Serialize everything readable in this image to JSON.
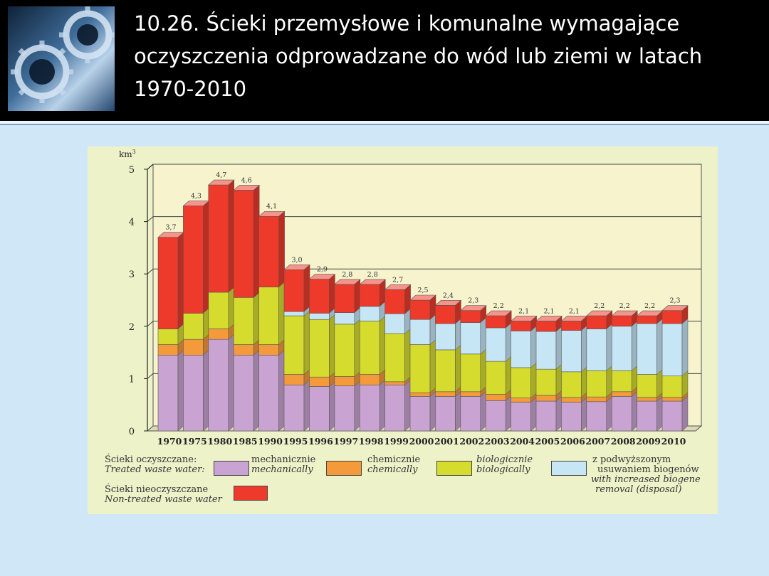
{
  "slide": {
    "title": "10.26. Ścieki przemysłowe i komunalne wymagające oczyszczenia odprowadzane do wód lub ziemi w latach 1970-2010",
    "logo_icon": "gears-icon"
  },
  "colors": {
    "background": "#cfe7f7",
    "header": "#000000",
    "chart_panel": "#eef2c9",
    "mechanically": "#c9a3d2",
    "chemically": "#f59a3a",
    "biologically": "#d6dc2e",
    "biogene_removal": "#c6e6f6",
    "non_treated": "#ee3a2a"
  },
  "chart_data": {
    "type": "bar",
    "stacked": true,
    "three_d": true,
    "unit_label": "km",
    "unit_superscript": "3",
    "ylim": [
      0,
      5
    ],
    "yticks": [
      0,
      1,
      2,
      3,
      4,
      5
    ],
    "grid": true,
    "categories": [
      "1970",
      "1975",
      "1980",
      "1985",
      "1990",
      "1995",
      "1996",
      "1997",
      "1998",
      "1999",
      "2000",
      "2001",
      "2002",
      "2003",
      "2004",
      "2005",
      "2006",
      "2007",
      "2008",
      "2009",
      "2010"
    ],
    "totals": [
      3.7,
      4.3,
      4.7,
      4.6,
      4.1,
      3.0,
      2.9,
      2.8,
      2.8,
      2.7,
      2.5,
      2.4,
      2.3,
      2.2,
      2.1,
      2.1,
      2.1,
      2.2,
      2.2,
      2.2,
      2.3
    ],
    "total_labels": [
      "3,7",
      "4,3",
      "4,7",
      "4,6",
      "4,1",
      "3,0",
      "2,9",
      "2,8",
      "2,8",
      "2,7",
      "2,5",
      "2,4",
      "2,3",
      "2,2",
      "2,1",
      "2,1",
      "2,1",
      "2,2",
      "2,2",
      "2,2",
      "2,3"
    ],
    "series": [
      {
        "key": "mechanically",
        "values": [
          1.45,
          1.45,
          1.75,
          1.45,
          1.45,
          0.88,
          0.85,
          0.86,
          0.88,
          0.88,
          0.66,
          0.66,
          0.66,
          0.58,
          0.55,
          0.57,
          0.55,
          0.56,
          0.66,
          0.57,
          0.57
        ]
      },
      {
        "key": "chemically",
        "values": [
          0.2,
          0.3,
          0.2,
          0.2,
          0.2,
          0.2,
          0.18,
          0.18,
          0.2,
          0.06,
          0.07,
          0.09,
          0.09,
          0.12,
          0.08,
          0.11,
          0.09,
          0.09,
          0.09,
          0.07,
          0.07
        ]
      },
      {
        "key": "biologically",
        "values": [
          0.3,
          0.5,
          0.7,
          0.9,
          1.1,
          1.12,
          1.1,
          1.0,
          1.02,
          0.92,
          0.92,
          0.8,
          0.72,
          0.63,
          0.58,
          0.5,
          0.49,
          0.5,
          0.4,
          0.44,
          0.41
        ]
      },
      {
        "key": "biogene_removal",
        "values": [
          0,
          0,
          0,
          0,
          0,
          0.08,
          0.12,
          0.22,
          0.28,
          0.38,
          0.48,
          0.5,
          0.6,
          0.64,
          0.7,
          0.72,
          0.79,
          0.8,
          0.85,
          0.97,
          1.0
        ]
      },
      {
        "key": "non_treated",
        "values": [
          1.75,
          2.05,
          2.05,
          2.05,
          1.35,
          0.8,
          0.65,
          0.54,
          0.42,
          0.46,
          0.37,
          0.35,
          0.23,
          0.23,
          0.19,
          0.2,
          0.18,
          0.25,
          0.2,
          0.15,
          0.25
        ]
      }
    ],
    "legend": {
      "treated_pl": "Ścieki oczyszczane:",
      "treated_en": "Treated waste water:",
      "mech_pl": "mechanicznie",
      "mech_en": "mechanically",
      "chem_pl": "chemicznie",
      "chem_en": "chemically",
      "bio_pl": "biologicznie",
      "bio_en": "biologically",
      "biogen_pl_1": "z podwyższonym",
      "biogen_pl_2": "usuwaniem biogenów",
      "biogen_en_1": "with increased biogene",
      "biogen_en_2": "removal (disposal)",
      "untreated_pl": "Ścieki nieoczyszczane",
      "untreated_en": "Non-treated waste water"
    }
  }
}
